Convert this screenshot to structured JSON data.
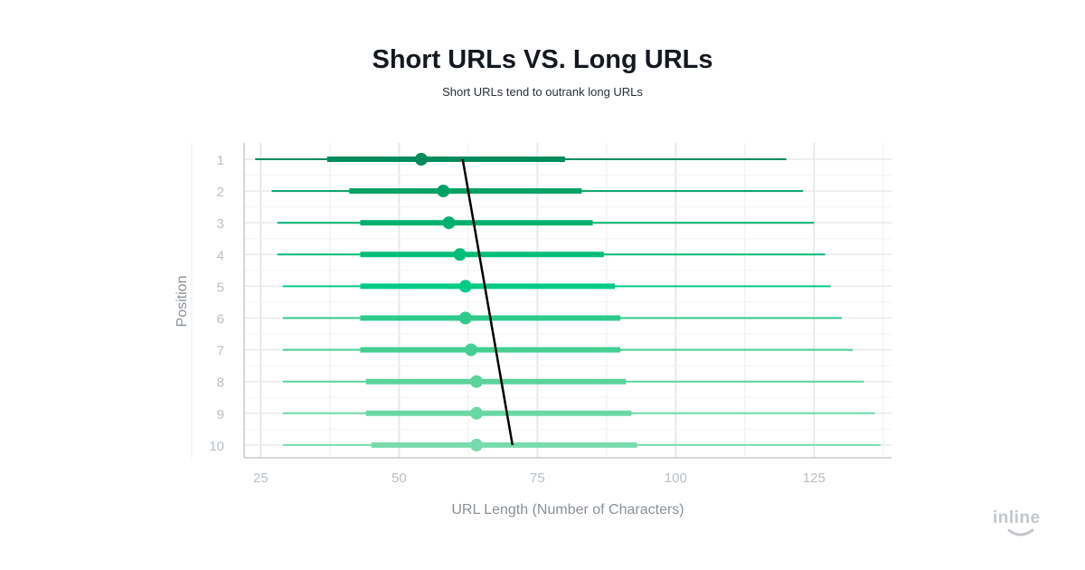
{
  "chart_data": {
    "type": "interval-range",
    "title": "Short URLs VS. Long URLs",
    "subtitle": "Short URLs tend to outrank long URLs",
    "xlabel": "URL Length (Number of Characters)",
    "ylabel": "Position",
    "xlim": [
      22,
      139
    ],
    "xticks": [
      25,
      50,
      75,
      100,
      125
    ],
    "grid": true,
    "categories": [
      "1",
      "2",
      "3",
      "4",
      "5",
      "6",
      "7",
      "8",
      "9",
      "10"
    ],
    "rows": [
      {
        "position": "1",
        "min": 24,
        "q1": 37,
        "median": 54,
        "q3": 80,
        "max": 120,
        "color": "#008c5b"
      },
      {
        "position": "2",
        "min": 27,
        "q1": 41,
        "median": 58,
        "q3": 83,
        "max": 123,
        "color": "#00a165"
      },
      {
        "position": "3",
        "min": 28,
        "q1": 43,
        "median": 59,
        "q3": 85,
        "max": 125,
        "color": "#00b06d"
      },
      {
        "position": "4",
        "min": 28,
        "q1": 43,
        "median": 61,
        "q3": 87,
        "max": 127,
        "color": "#00bd77"
      },
      {
        "position": "5",
        "min": 29,
        "q1": 43,
        "median": 62,
        "q3": 89,
        "max": 128,
        "color": "#00cc85"
      },
      {
        "position": "6",
        "min": 29,
        "q1": 43,
        "median": 62,
        "q3": 90,
        "max": 130,
        "color": "#2ecb8b"
      },
      {
        "position": "7",
        "min": 29,
        "q1": 43,
        "median": 63,
        "q3": 90,
        "max": 132,
        "color": "#45cf92"
      },
      {
        "position": "8",
        "min": 29,
        "q1": 44,
        "median": 64,
        "q3": 91,
        "max": 134,
        "color": "#5ad39c"
      },
      {
        "position": "9",
        "min": 29,
        "q1": 44,
        "median": 64,
        "q3": 92,
        "max": 136,
        "color": "#6ad8a5"
      },
      {
        "position": "10",
        "min": 29,
        "q1": 45,
        "median": 64,
        "q3": 93,
        "max": 137,
        "color": "#78dbad"
      }
    ],
    "trend_line": {
      "x_start": 61.5,
      "y_start": "1",
      "x_end": 70.5,
      "y_end": "10",
      "color": "#000000"
    }
  },
  "brand": {
    "logo_text": "inline"
  }
}
